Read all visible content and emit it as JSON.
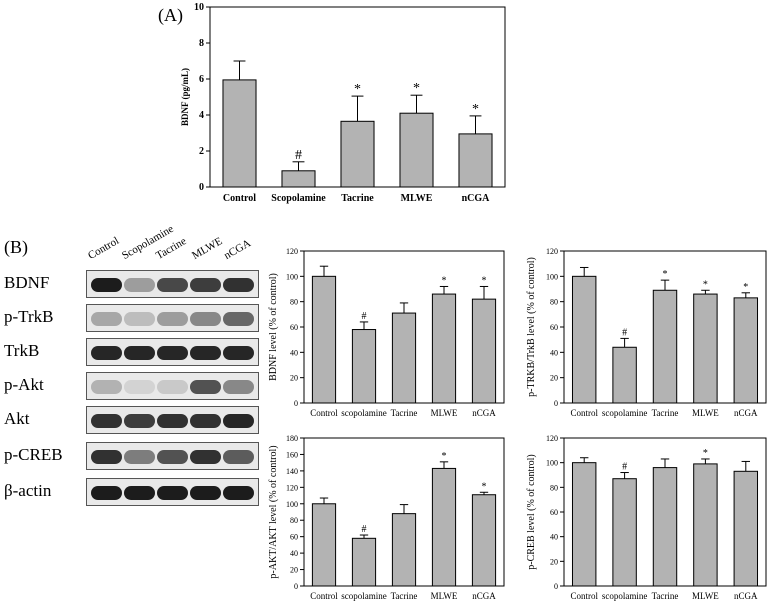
{
  "panel_labels": {
    "a": "(A)",
    "b": "(B)"
  },
  "western_blot": {
    "lanes": [
      "Control",
      "Scopolamine",
      "Tacrine",
      "MLWE",
      "nCGA"
    ],
    "rows": [
      "BDNF",
      "p-TrkB",
      "TrkB",
      "p-Akt",
      "Akt",
      "p-CREB",
      "β-actin"
    ],
    "intensity": [
      [
        0.95,
        0.35,
        0.75,
        0.8,
        0.85
      ],
      [
        0.3,
        0.2,
        0.35,
        0.45,
        0.6
      ],
      [
        0.9,
        0.9,
        0.9,
        0.9,
        0.9
      ],
      [
        0.25,
        0.1,
        0.15,
        0.7,
        0.45
      ],
      [
        0.85,
        0.8,
        0.85,
        0.85,
        0.9
      ],
      [
        0.85,
        0.5,
        0.7,
        0.85,
        0.65
      ],
      [
        0.95,
        0.95,
        0.95,
        0.95,
        0.95
      ]
    ]
  },
  "chart_data": [
    {
      "id": "A",
      "type": "bar",
      "categories": [
        "Control",
        "Scopolamine",
        "Tacrine",
        "MLWE",
        "nCGA"
      ],
      "values": [
        5.95,
        0.9,
        3.65,
        4.1,
        2.95
      ],
      "errors": [
        1.05,
        0.5,
        1.4,
        1.0,
        1.0
      ],
      "annotations": [
        "",
        "#",
        "*",
        "*",
        "*"
      ],
      "ylabel": "BDNF (pg/mL)",
      "ylim": [
        0,
        10
      ],
      "yticks": [
        0,
        2,
        4,
        6,
        8,
        10
      ]
    },
    {
      "id": "B1",
      "type": "bar",
      "categories": [
        "Control",
        "scopolamine",
        "Tacrine",
        "MLWE",
        "nCGA"
      ],
      "values": [
        100,
        58,
        71,
        86,
        82
      ],
      "errors": [
        8,
        6,
        8,
        6,
        10
      ],
      "annotations": [
        "",
        "#",
        "",
        "*",
        "*"
      ],
      "ylabel": "BDNF level (% of control)",
      "ylim": [
        0,
        120
      ],
      "yticks": [
        0,
        20,
        40,
        60,
        80,
        100,
        120
      ]
    },
    {
      "id": "B2",
      "type": "bar",
      "categories": [
        "Control",
        "scopolamine",
        "Tacrine",
        "MLWE",
        "nCGA"
      ],
      "values": [
        100,
        44,
        89,
        86,
        83
      ],
      "errors": [
        7,
        7,
        8,
        3,
        4
      ],
      "annotations": [
        "",
        "#",
        "*",
        "*",
        "*"
      ],
      "ylabel": "p-TRKB/TrkB level (% of control)",
      "ylim": [
        0,
        120
      ],
      "yticks": [
        0,
        20,
        40,
        60,
        80,
        100,
        120
      ]
    },
    {
      "id": "B3",
      "type": "bar",
      "categories": [
        "Control",
        "scopolamine",
        "Tacrine",
        "MLWE",
        "nCGA"
      ],
      "values": [
        100,
        58,
        88,
        143,
        111
      ],
      "errors": [
        7,
        4,
        11,
        8,
        3
      ],
      "annotations": [
        "",
        "#",
        "",
        "*",
        "*"
      ],
      "ylabel": "p-AKT/AKT level (% of control)",
      "ylim": [
        0,
        180
      ],
      "yticks": [
        0,
        20,
        40,
        60,
        80,
        100,
        120,
        140,
        160,
        180
      ]
    },
    {
      "id": "B4",
      "type": "bar",
      "categories": [
        "Control",
        "scopolamine",
        "Tacrine",
        "MLWE",
        "nCGA"
      ],
      "values": [
        100,
        87,
        96,
        99,
        93
      ],
      "errors": [
        4,
        5,
        7,
        4,
        8
      ],
      "annotations": [
        "",
        "#",
        "",
        "*",
        ""
      ],
      "ylabel": "p-CREB level (% of control)",
      "ylim": [
        0,
        120
      ],
      "yticks": [
        0,
        20,
        40,
        60,
        80,
        100,
        120
      ]
    }
  ]
}
